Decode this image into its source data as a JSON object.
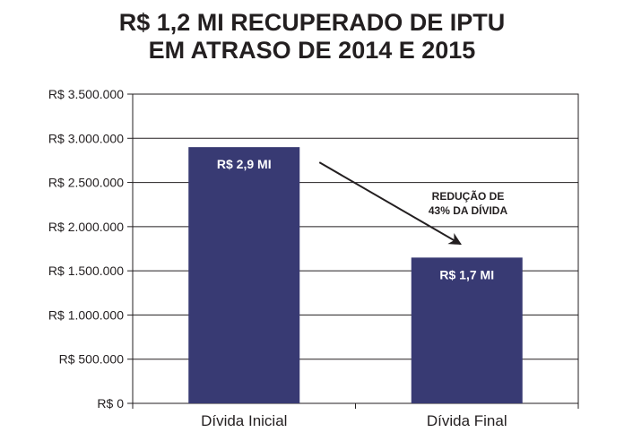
{
  "chart_data": {
    "type": "bar",
    "title_lines": [
      "R$ 1,2 MI RECUPERADO DE IPTU",
      "EM ATRASO DE 2014 E 2015"
    ],
    "categories": [
      "Dívida Inicial",
      "Dívida Final"
    ],
    "values": [
      2900000,
      1650000
    ],
    "data_labels": [
      "R$ 2,9 MI",
      "R$ 1,7 MI"
    ],
    "ylim": [
      0,
      3500000
    ],
    "y_ticks": [
      0,
      500000,
      1000000,
      1500000,
      2000000,
      2500000,
      3000000,
      3500000
    ],
    "y_tick_labels": [
      "R$ 0",
      "R$ 500.000",
      "R$ 1.000.000",
      "R$ 1.500.000",
      "R$ 2.000.000",
      "R$ 2.500.000",
      "R$ 3.000.000",
      "R$ 3.500.000"
    ],
    "grid": true,
    "annotation": {
      "lines": [
        "REDUÇÃO DE",
        "43% DA DÍVIDA"
      ],
      "from_category": "Dívida Inicial",
      "to_category": "Dívida Final"
    },
    "colors": {
      "bar": "#383a73",
      "grid": "#231f20",
      "text": "#231f20",
      "label_text": "#ffffff"
    }
  }
}
